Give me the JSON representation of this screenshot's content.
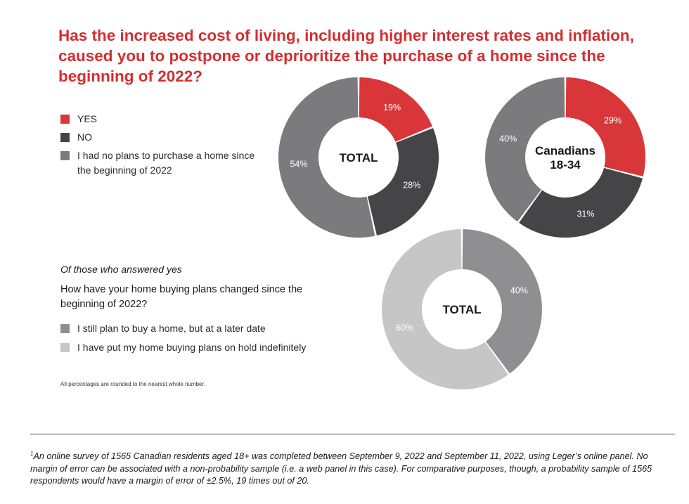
{
  "title": "Has the increased cost of living, including higher interest rates and inflation, caused you to postpone or deprioritize the purchase of a home since the beginning of 2022?",
  "legend1": [
    {
      "label": "YES",
      "color": "#d9363a"
    },
    {
      "label": "NO",
      "color": "#454547"
    },
    {
      "label": "I had no plans to purchase a home since the beginning of 2022",
      "color": "#7b7b7d"
    }
  ],
  "sub_intro": "Of those who answered yes",
  "sub_question": "How have your home buying plans changed since the beginning of 2022?",
  "legend2": [
    {
      "label": "I still plan to buy a home, but at a later date",
      "color": "#8f8f91"
    },
    {
      "label": "I have put my home buying plans on hold indefinitely",
      "color": "#c6c6c6"
    }
  ],
  "note": "All percentages are rounded to the nearest whole number.",
  "footnote": {
    "marker": "1",
    "text": "An online survey of 1565 Canadian residents aged 18+ was completed between September 9, 2022 and September 11, 2022, using Leger’s online panel. No margin of error can be associated with a non-probability sample (i.e. a web panel in this case). For comparative purposes, though, a probability sample of 1565 respondents would have a margin of error of ±2.5%, 19 times out of 20."
  },
  "chart_data": [
    {
      "type": "pie",
      "variant": "donut",
      "center_label": [
        "TOTAL"
      ],
      "categories": [
        "YES",
        "NO",
        "I had no plans to purchase a home since the beginning of 2022"
      ],
      "values": [
        19,
        28,
        54
      ],
      "labels": [
        "19%",
        "28%",
        "54%"
      ],
      "colors": [
        "#d9363a",
        "#454547",
        "#7b7b7d"
      ]
    },
    {
      "type": "pie",
      "variant": "donut",
      "center_label": [
        "Canadians",
        "18-34"
      ],
      "categories": [
        "YES",
        "NO",
        "I had no plans to purchase a home since the beginning of 2022"
      ],
      "values": [
        29,
        31,
        40
      ],
      "labels": [
        "29%",
        "31%",
        "40%"
      ],
      "colors": [
        "#d9363a",
        "#454547",
        "#7b7b7d"
      ]
    },
    {
      "type": "pie",
      "variant": "donut",
      "center_label": [
        "TOTAL"
      ],
      "categories": [
        "I still plan to buy a home, but at a later date",
        "I have put my home buying plans on hold indefinitely"
      ],
      "values": [
        40,
        60
      ],
      "labels": [
        "40%",
        "60%"
      ],
      "colors": [
        "#8f8f91",
        "#c6c6c6"
      ]
    }
  ]
}
